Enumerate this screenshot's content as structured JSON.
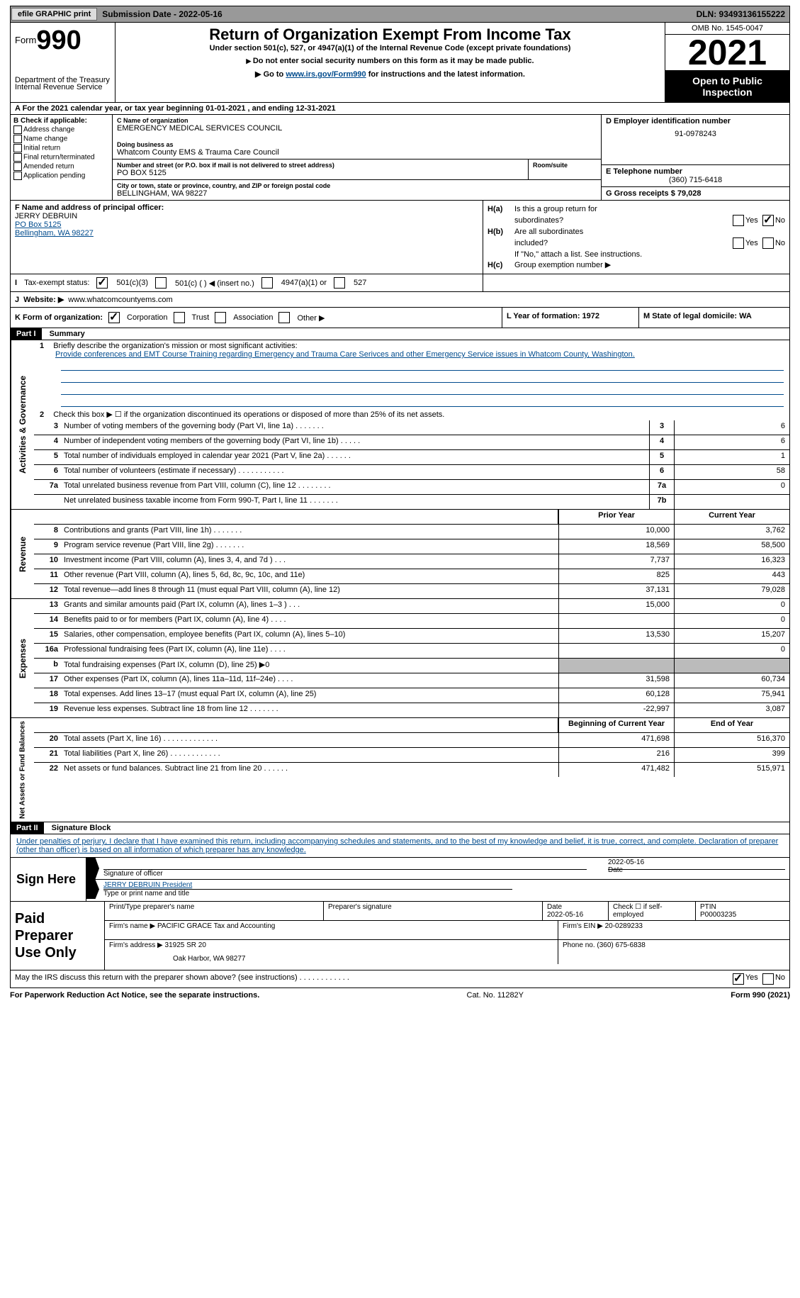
{
  "topbar": {
    "efile": "efile GRAPHIC print",
    "submission_label": "Submission Date - 2022-05-16",
    "dln_label": "DLN: 93493136155222"
  },
  "header": {
    "form_word": "Form",
    "form_num": "990",
    "dept": "Department of the Treasury",
    "irs": "Internal Revenue Service",
    "title": "Return of Organization Exempt From Income Tax",
    "sub1": "Under section 501(c), 527, or 4947(a)(1) of the Internal Revenue Code (except private foundations)",
    "sub2": "Do not enter social security numbers on this form as it may be made public.",
    "sub3_pre": "Go to ",
    "sub3_link": "www.irs.gov/Form990",
    "sub3_post": " for instructions and the latest information.",
    "omb": "OMB No. 1545-0047",
    "year": "2021",
    "open": "Open to Public Inspection"
  },
  "row_a": "A For the 2021 calendar year, or tax year beginning 01-01-2021    , and ending 12-31-2021",
  "col_b": {
    "title": "B Check if applicable:",
    "opts": [
      "Address change",
      "Name change",
      "Initial return",
      "Final return/terminated",
      "Amended return",
      "Application pending"
    ]
  },
  "col_c": {
    "name_lbl": "C Name of organization",
    "name": "EMERGENCY MEDICAL SERVICES COUNCIL",
    "dba_lbl": "Doing business as",
    "dba": "Whatcom County EMS & Trauma Care Council",
    "addr_lbl": "Number and street (or P.O. box if mail is not delivered to street address)",
    "room_lbl": "Room/suite",
    "addr": "PO BOX 5125",
    "city_lbl": "City or town, state or province, country, and ZIP or foreign postal code",
    "city": "BELLINGHAM, WA  98227"
  },
  "col_d": {
    "ein_lbl": "D Employer identification number",
    "ein": "91-0978243",
    "phone_lbl": "E Telephone number",
    "phone": "(360) 715-6418",
    "gross_lbl": "G Gross receipts $ 79,028"
  },
  "row_f": {
    "lbl": "F Name and address of principal officer:",
    "name": "JERRY DEBRUIN",
    "addr1": "PO Box 5125",
    "addr2": "Bellingham, WA  98227"
  },
  "row_h": {
    "a_lbl_pre": "H(a)",
    "a_text1": "Is this a group return for",
    "a_text2": "subordinates?",
    "b_lbl": "H(b)",
    "b_text1": "Are all subordinates",
    "b_text2": "included?",
    "b_note": "If \"No,\" attach a list. See instructions.",
    "c_lbl": "H(c)",
    "c_text": "Group exemption number ▶",
    "yes": "Yes",
    "no": "No"
  },
  "row_i": {
    "lbl": "I",
    "text": "Tax-exempt status:",
    "opt1": "501(c)(3)",
    "opt2": "501(c) (  ) ◀ (insert no.)",
    "opt3": "4947(a)(1) or",
    "opt4": "527"
  },
  "row_j": {
    "lbl": "J",
    "text": "Website: ▶",
    "val": "www.whatcomcountyems.com"
  },
  "row_k": {
    "lbl": "K Form of organization:",
    "opts": [
      "Corporation",
      "Trust",
      "Association",
      "Other ▶"
    ]
  },
  "row_l": {
    "lbl": "L Year of formation: 1972"
  },
  "row_m": {
    "lbl": "M State of legal domicile: WA"
  },
  "parts": {
    "p1": "Part I",
    "p1_title": "Summary",
    "p2": "Part II",
    "p2_title": "Signature Block"
  },
  "summary": {
    "line1_lbl": "1",
    "line1_text": "Briefly describe the organization's mission or most significant activities:",
    "mission": "Provide conferences and EMT Course Training regarding Emergency and Trauma Care Serivces and other Emergency Service issues in Whatcom County, Washington.",
    "line2_lbl": "2",
    "line2_text": "Check this box ▶ ☐  if the organization discontinued its operations or disposed of more than 25% of its net assets.",
    "sections": {
      "s1": "Activities & Governance",
      "s2": "Revenue",
      "s3": "Expenses",
      "s4": "Net Assets or Fund Balances"
    },
    "hdrs": {
      "prior": "Prior Year",
      "current": "Current Year",
      "begin": "Beginning of Current Year",
      "end": "End of Year"
    },
    "rows_gov": [
      {
        "n": "3",
        "d": "Number of voting members of the governing body (Part VI, line 1a)  .    .    .    .    .    .    .",
        "b": "3",
        "v": "6"
      },
      {
        "n": "4",
        "d": "Number of independent voting members of the governing body (Part VI, line 1b)  .    .    .    .    .",
        "b": "4",
        "v": "6"
      },
      {
        "n": "5",
        "d": "Total number of individuals employed in calendar year 2021 (Part V, line 2a)  .    .    .    .    .    .",
        "b": "5",
        "v": "1"
      },
      {
        "n": "6",
        "d": "Total number of volunteers (estimate if necessary)    .    .    .    .    .    .    .    .    .    .    .",
        "b": "6",
        "v": "58"
      },
      {
        "n": "7a",
        "d": "Total unrelated business revenue from Part VIII, column (C), line 12  .    .    .    .    .    .    .    .",
        "b": "7a",
        "v": "0"
      },
      {
        "n": "",
        "d": "Net unrelated business taxable income from Form 990-T, Part I, line 11  .    .    .    .    .    .    .",
        "b": "7b",
        "v": ""
      }
    ],
    "rows_rev": [
      {
        "n": "8",
        "d": "Contributions and grants (Part VIII, line 1h)   .    .    .    .    .    .    .",
        "p": "10,000",
        "c": "3,762"
      },
      {
        "n": "9",
        "d": "Program service revenue (Part VIII, line 2g)   .    .    .    .    .    .    .",
        "p": "18,569",
        "c": "58,500"
      },
      {
        "n": "10",
        "d": "Investment income (Part VIII, column (A), lines 3, 4, and 7d )   .    .    .",
        "p": "7,737",
        "c": "16,323"
      },
      {
        "n": "11",
        "d": "Other revenue (Part VIII, column (A), lines 5, 6d, 8c, 9c, 10c, and 11e)",
        "p": "825",
        "c": "443"
      },
      {
        "n": "12",
        "d": "Total revenue—add lines 8 through 11 (must equal Part VIII, column (A), line 12)",
        "p": "37,131",
        "c": "79,028"
      }
    ],
    "rows_exp": [
      {
        "n": "13",
        "d": "Grants and similar amounts paid (Part IX, column (A), lines 1–3 )  .    .    .",
        "p": "15,000",
        "c": "0"
      },
      {
        "n": "14",
        "d": "Benefits paid to or for members (Part IX, column (A), line 4)  .    .    .    .",
        "p": "",
        "c": "0"
      },
      {
        "n": "15",
        "d": "Salaries, other compensation, employee benefits (Part IX, column (A), lines 5–10)",
        "p": "13,530",
        "c": "15,207"
      },
      {
        "n": "16a",
        "d": "Professional fundraising fees (Part IX, column (A), line 11e)  .    .    .    .",
        "p": "",
        "c": "0"
      },
      {
        "n": "b",
        "d": "Total fundraising expenses (Part IX, column (D), line 25) ▶0",
        "p": "gray",
        "c": "gray"
      },
      {
        "n": "17",
        "d": "Other expenses (Part IX, column (A), lines 11a–11d, 11f–24e)  .    .    .    .",
        "p": "31,598",
        "c": "60,734"
      },
      {
        "n": "18",
        "d": "Total expenses. Add lines 13–17 (must equal Part IX, column (A), line 25)",
        "p": "60,128",
        "c": "75,941"
      },
      {
        "n": "19",
        "d": "Revenue less expenses. Subtract line 18 from line 12 .    .    .    .    .    .    .",
        "p": "-22,997",
        "c": "3,087"
      }
    ],
    "rows_net": [
      {
        "n": "20",
        "d": "Total assets (Part X, line 16) .    .    .    .    .    .    .    .    .    .    .    .    .",
        "p": "471,698",
        "c": "516,370"
      },
      {
        "n": "21",
        "d": "Total liabilities (Part X, line 26) .    .    .    .    .    .    .    .    .    .    .    .",
        "p": "216",
        "c": "399"
      },
      {
        "n": "22",
        "d": "Net assets or fund balances. Subtract line 21 from line 20  .    .    .    .    .    .",
        "p": "471,482",
        "c": "515,971"
      }
    ]
  },
  "sig": {
    "declare": "Under penalties of perjury, I declare that I have examined this return, including accompanying schedules and statements, and to the best of my knowledge and belief, it is true, correct, and complete. Declaration of preparer (other than officer) is based on all information of which preparer has any knowledge.",
    "sign_here": "Sign Here",
    "sig_officer": "Signature of officer",
    "date_lbl": "Date",
    "date_val": "2022-05-16",
    "name_title": "JERRY DEBRUIN  President",
    "name_title_lbl": "Type or print name and title"
  },
  "prep": {
    "title": "Paid Preparer Use Only",
    "h1": "Print/Type preparer's name",
    "h2": "Preparer's signature",
    "h3": "Date",
    "h3v": "2022-05-16",
    "h4": "Check ☐ if self-employed",
    "h5": "PTIN",
    "h5v": "P00003235",
    "firm_lbl": "Firm's name    ▶",
    "firm": "PACIFIC GRACE Tax and Accounting",
    "ein_lbl": "Firm's EIN ▶ 20-0289233",
    "addr_lbl": "Firm's address ▶",
    "addr1": "31925 SR 20",
    "addr2": "Oak Harbor, WA  98277",
    "phone_lbl": "Phone no. (360) 675-6838"
  },
  "footer": {
    "discuss": "May the IRS discuss this return with the preparer shown above? (see instructions)  .    .    .    .    .    .    .    .    .    .    .    .",
    "yes": "Yes",
    "no": "No",
    "paperwork": "For Paperwork Reduction Act Notice, see the separate instructions.",
    "cat": "Cat. No. 11282Y",
    "formref": "Form 990 (2021)"
  }
}
